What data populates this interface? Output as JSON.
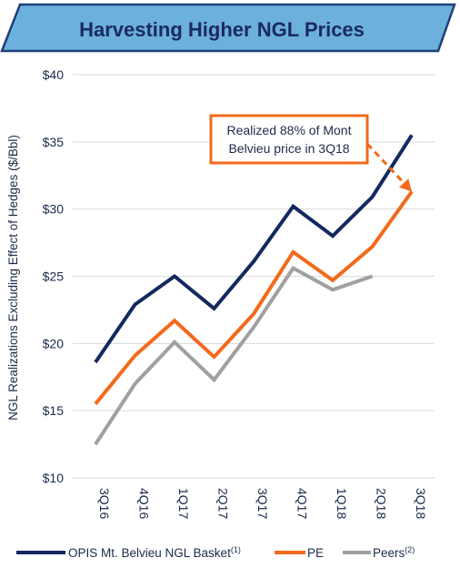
{
  "colors": {
    "title_bg": "#6cb0dc",
    "title_border": "#1f3f7a",
    "title_text": "#1b2a5e",
    "navy": "#13295e",
    "orange": "#f26a1b",
    "gray": "#a0a0a0",
    "grid": "#d9d9d9"
  },
  "chart_data": {
    "type": "line",
    "title": "Harvesting Higher NGL Prices",
    "ylabel": "NGL Realizations Excluding Effect of Hedges ($/Bbl)",
    "xlabel": "",
    "ylim": [
      10,
      40
    ],
    "grid": true,
    "legend_position": "bottom",
    "y_ticks": [
      {
        "value": 40,
        "label": "$40"
      },
      {
        "value": 35,
        "label": "$35"
      },
      {
        "value": 30,
        "label": "$30"
      },
      {
        "value": 25,
        "label": "$25"
      },
      {
        "value": 20,
        "label": "$20"
      },
      {
        "value": 15,
        "label": "$15"
      },
      {
        "value": 10,
        "label": "$10"
      }
    ],
    "categories": [
      "3Q16",
      "4Q16",
      "1Q17",
      "2Q17",
      "3Q17",
      "4Q17",
      "1Q18",
      "2Q18",
      "3Q18"
    ],
    "series": [
      {
        "key": "opis",
        "name": "OPIS Mt. Belvieu NGL Basket",
        "sup": "(1)",
        "color": "#13295e",
        "values": [
          18.6,
          22.9,
          25.0,
          22.6,
          26.1,
          30.2,
          28.0,
          30.9,
          35.5
        ]
      },
      {
        "key": "pe",
        "name": "PE",
        "sup": "",
        "color": "#f26a1b",
        "values": [
          15.5,
          19.1,
          21.7,
          19.0,
          22.2,
          26.8,
          24.7,
          27.2,
          31.3
        ]
      },
      {
        "key": "peers",
        "name": "Peers",
        "sup": "(2)",
        "color": "#a0a0a0",
        "values": [
          12.5,
          17.0,
          20.1,
          17.3,
          21.2,
          25.6,
          24.0,
          25.0,
          null
        ]
      }
    ],
    "annotation": {
      "lines": [
        "Realized 88% of Mont",
        "Belvieu price in 3Q18"
      ],
      "from": {
        "category": "3Q18",
        "series": "opis"
      },
      "to": {
        "category": "3Q18",
        "series": "pe"
      }
    }
  }
}
